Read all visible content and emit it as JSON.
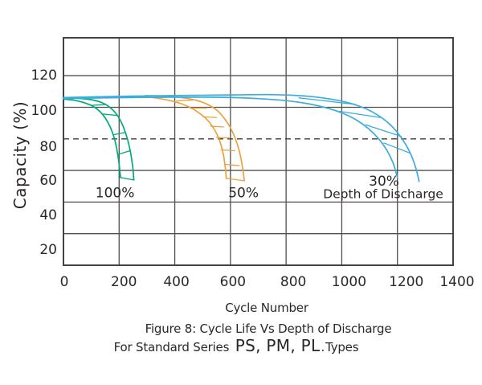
{
  "figure": {
    "ylabel": "Capacity (%)",
    "xlabel": "Cycle Number",
    "caption1": "Figure 8: Cycle Life Vs Depth of Discharge",
    "caption2": {
      "prefix": "For Standard Series ",
      "series": "PS, PM, PL",
      "dot": ".",
      "suffix": "Types"
    }
  },
  "chart_data": {
    "type": "line",
    "title": "Figure 8: Cycle Life Vs Depth of Discharge",
    "subtitle": "For Standard Series PS, PM, PL Types",
    "xlabel": "Cycle Number",
    "ylabel": "Capacity (%)",
    "xlim": [
      0,
      1400
    ],
    "ylim": [
      0,
      144
    ],
    "x_ticks": [
      0,
      200,
      400,
      600,
      800,
      1000,
      1200,
      1400
    ],
    "y_ticks": [
      120,
      100,
      80,
      60,
      40,
      20
    ],
    "grid": true,
    "legend": "none",
    "reference_line": {
      "y": 80,
      "style": "dashed",
      "meaning": "80% capacity threshold"
    },
    "series": [
      {
        "name": "100% depth of discharge - upper bound",
        "dod": "100%",
        "color": "#00a87e",
        "points": [
          [
            0,
            106
          ],
          [
            50,
            105.7
          ],
          [
            100,
            104.8
          ],
          [
            140,
            102.8
          ],
          [
            170,
            99.5
          ],
          [
            195,
            94.5
          ],
          [
            213,
            88.5
          ],
          [
            228,
            81
          ],
          [
            240,
            72.5
          ],
          [
            249,
            62
          ],
          [
            253,
            54
          ]
        ]
      },
      {
        "name": "100% depth of discharge - lower bound",
        "dod": "100%",
        "color": "#00a87e",
        "points": [
          [
            0,
            105.2
          ],
          [
            40,
            104.4
          ],
          [
            80,
            102.6
          ],
          [
            112,
            100
          ],
          [
            138,
            96
          ],
          [
            158,
            91
          ],
          [
            174,
            85
          ],
          [
            187,
            77.5
          ],
          [
            197,
            68
          ],
          [
            203,
            59
          ],
          [
            205,
            55.5
          ]
        ]
      },
      {
        "name": "50% depth of discharge - upper bound",
        "dod": "50%",
        "color": "#e9a440",
        "points": [
          [
            295,
            107.4
          ],
          [
            370,
            107
          ],
          [
            430,
            106
          ],
          [
            480,
            104.3
          ],
          [
            520,
            101.6
          ],
          [
            552,
            98
          ],
          [
            578,
            93
          ],
          [
            600,
            87
          ],
          [
            618,
            80
          ],
          [
            633,
            71.5
          ],
          [
            644,
            61.5
          ],
          [
            650,
            53.5
          ]
        ]
      },
      {
        "name": "50% depth of discharge - lower bound",
        "dod": "50%",
        "color": "#e9a440",
        "points": [
          [
            272,
            107
          ],
          [
            340,
            105.7
          ],
          [
            400,
            103.5
          ],
          [
            448,
            100.5
          ],
          [
            487,
            96.5
          ],
          [
            518,
            91.8
          ],
          [
            542,
            86
          ],
          [
            561,
            79
          ],
          [
            574,
            70.5
          ],
          [
            582,
            61
          ],
          [
            585,
            55
          ]
        ]
      },
      {
        "name": "30% depth of discharge - upper bound",
        "dod": "30%",
        "color": "#3bacde",
        "points": [
          [
            0,
            106.2
          ],
          [
            200,
            106.9
          ],
          [
            400,
            107.4
          ],
          [
            600,
            107.8
          ],
          [
            760,
            108
          ],
          [
            870,
            107.1
          ],
          [
            960,
            105.2
          ],
          [
            1030,
            102.6
          ],
          [
            1085,
            99.2
          ],
          [
            1130,
            95
          ],
          [
            1168,
            90
          ],
          [
            1200,
            84
          ],
          [
            1228,
            77
          ],
          [
            1250,
            69.5
          ],
          [
            1267,
            61
          ],
          [
            1278,
            53
          ]
        ]
      },
      {
        "name": "30% depth of discharge - lower bound",
        "dod": "30%",
        "color": "#3bacde",
        "points": [
          [
            0,
            105.5
          ],
          [
            200,
            106.1
          ],
          [
            400,
            106.4
          ],
          [
            580,
            106.3
          ],
          [
            700,
            105.5
          ],
          [
            800,
            104.2
          ],
          [
            880,
            102.2
          ],
          [
            950,
            99.4
          ],
          [
            1008,
            95.9
          ],
          [
            1056,
            91.6
          ],
          [
            1098,
            86.2
          ],
          [
            1133,
            80
          ],
          [
            1162,
            72.8
          ],
          [
            1185,
            64.5
          ],
          [
            1200,
            55.5
          ]
        ]
      }
    ],
    "hatch_segments": [
      {
        "dod": "100%",
        "color": "#00a87e",
        "segments": [
          [
            [
              98,
              101.2
            ],
            [
              150,
              101.7
            ]
          ],
          [
            [
              138,
              95.8
            ],
            [
              194,
              94.8
            ]
          ],
          [
            [
              176,
              82.5
            ],
            [
              222,
              84
            ]
          ],
          [
            [
              194,
              70
            ],
            [
              240,
              72.5
            ]
          ],
          [
            [
              205,
              55.5
            ],
            [
              253,
              54
            ]
          ]
        ]
      },
      {
        "dod": "50%",
        "color": "#e9a440",
        "segments": [
          [
            [
              405,
              104
            ],
            [
              465,
              104.6
            ]
          ],
          [
            [
              462,
              99.5
            ],
            [
              516,
              99.5
            ]
          ],
          [
            [
              500,
              94
            ],
            [
              552,
              93.5
            ]
          ],
          [
            [
              528,
              88
            ],
            [
              578,
              87.5
            ]
          ],
          [
            [
              549,
              81
            ],
            [
              598,
              80.5
            ]
          ],
          [
            [
              565,
              73
            ],
            [
              617,
              72.5
            ]
          ],
          [
            [
              577,
              64
            ],
            [
              633,
              63
            ]
          ],
          [
            [
              585,
              55
            ],
            [
              650,
              53.5
            ]
          ]
        ]
      },
      {
        "dod": "30%",
        "color": "#3bacde",
        "segments": [
          [
            [
              845,
              106
            ],
            [
              1050,
              101.8
            ]
          ],
          [
            [
              990,
              97.5
            ],
            [
              1140,
              93.5
            ]
          ],
          [
            [
              1085,
              89
            ],
            [
              1215,
              81.5
            ]
          ],
          [
            [
              1150,
              77.5
            ],
            [
              1245,
              71
            ]
          ]
        ]
      }
    ],
    "annotations": [
      {
        "text": "100%",
        "x": 185,
        "y": 46,
        "role": "dod-label"
      },
      {
        "text": "50%",
        "x": 647,
        "y": 46,
        "role": "dod-label"
      },
      {
        "text": "30%",
        "x": 1152,
        "y": 53.5,
        "role": "dod-label"
      },
      {
        "text": "Depth of Discharge",
        "x": 1149,
        "y": 45.5,
        "role": "dod-note"
      }
    ]
  },
  "colors": {
    "dod_100": "#00a87e",
    "dod_50": "#e9a440",
    "dod_30": "#3bacde",
    "grid": "#534e4b",
    "frame": "#474240",
    "text": "#2b2726",
    "dashed": "#3f3b39",
    "background": "#ffffff"
  }
}
